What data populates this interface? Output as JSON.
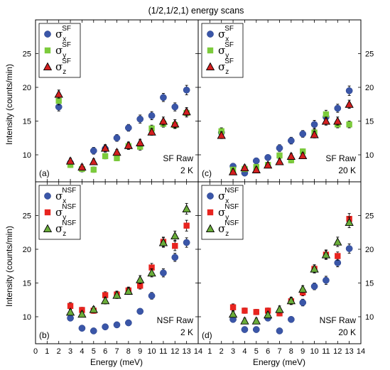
{
  "title": "(1/2,1/2,1) energy scans",
  "xlabel": "Energy (meV)",
  "ylabel": "Intensity (counts/min)",
  "colors": {
    "x": "#3a56a8",
    "y": "#7ccb3c",
    "y_nsf": "#e8241f",
    "z": "#d41f1f",
    "z_nsf": "#6aad3a"
  },
  "chart_data": [
    {
      "type": "scatter",
      "panel": "(a)",
      "label_line1": "SF Raw",
      "label_line2": "2 K",
      "x_ticks": [
        0,
        1,
        2,
        3,
        4,
        5,
        6,
        7,
        8,
        9,
        10,
        11,
        12,
        13,
        14
      ],
      "xlim": [
        0,
        14
      ],
      "ylim": [
        6,
        30
      ],
      "y_ticks": [
        10,
        15,
        20,
        25
      ],
      "series": [
        {
          "name": "σxSF",
          "sym": "σ",
          "sub": "x",
          "sup": "SF",
          "marker": "circle",
          "color": "#3a56a8",
          "x": [
            2,
            3,
            4,
            5,
            6,
            7,
            8,
            9,
            10,
            11,
            12,
            13
          ],
          "y": [
            17.1,
            8.8,
            7.9,
            10.6,
            10.9,
            12.5,
            14.0,
            15.3,
            15.8,
            18.5,
            17.1,
            19.6
          ],
          "err": [
            0.6,
            0.4,
            0.4,
            0.5,
            0.5,
            0.5,
            0.5,
            0.6,
            0.6,
            0.6,
            0.6,
            0.7
          ]
        },
        {
          "name": "σySF",
          "sym": "σ",
          "sub": "y",
          "sup": "SF",
          "marker": "square",
          "color": "#7ccb3c",
          "x": [
            2,
            3,
            4,
            5,
            6,
            7,
            8,
            9,
            10,
            11,
            12,
            13
          ],
          "y": [
            18.0,
            8.5,
            7.9,
            7.8,
            9.8,
            9.5,
            11.3,
            11.2,
            13.9,
            14.6,
            14.4,
            16.2
          ],
          "err": [
            0.6,
            0.4,
            0.4,
            0.4,
            0.4,
            0.4,
            0.5,
            0.5,
            0.5,
            0.5,
            0.5,
            0.6
          ]
        },
        {
          "name": "σzSF",
          "sym": "σ",
          "sub": "z",
          "sup": "SF",
          "marker": "triangle",
          "color": "#d41f1f",
          "x": [
            2,
            3,
            4,
            5,
            6,
            7,
            8,
            9,
            10,
            11,
            12,
            13
          ],
          "y": [
            19.0,
            9.1,
            8.2,
            9.0,
            11.0,
            10.4,
            11.4,
            11.8,
            13.4,
            15.0,
            14.6,
            16.4
          ],
          "err": [
            0.6,
            0.4,
            0.4,
            0.4,
            0.5,
            0.4,
            0.5,
            0.5,
            0.5,
            0.6,
            0.6,
            0.6
          ]
        }
      ]
    },
    {
      "type": "scatter",
      "panel": "(c)",
      "label_line1": "SF Raw",
      "label_line2": "20 K",
      "x_ticks": [
        0,
        1,
        2,
        3,
        4,
        5,
        6,
        7,
        8,
        9,
        10,
        11,
        12,
        13,
        14
      ],
      "xlim": [
        0,
        14
      ],
      "ylim": [
        6,
        30
      ],
      "y_ticks": [
        10,
        15,
        20,
        25
      ],
      "series": [
        {
          "name": "σxSF",
          "sym": "σ",
          "sub": "x",
          "sup": "SF",
          "marker": "circle",
          "color": "#3a56a8",
          "x": [
            2,
            3,
            4,
            5,
            6,
            7,
            8,
            9,
            10,
            11,
            12,
            13
          ],
          "y": [
            13.3,
            8.3,
            7.3,
            9.1,
            9.6,
            11.0,
            12.1,
            13.1,
            14.5,
            15.6,
            16.9,
            19.5
          ],
          "err": [
            0.5,
            0.4,
            0.4,
            0.4,
            0.4,
            0.5,
            0.5,
            0.5,
            0.6,
            0.6,
            0.6,
            0.7
          ]
        },
        {
          "name": "σySF",
          "sym": "σ",
          "sub": "y",
          "sup": "SF",
          "marker": "square",
          "color": "#7ccb3c",
          "x": [
            2,
            3,
            4,
            5,
            6,
            7,
            8,
            9,
            10,
            11,
            12,
            13
          ],
          "y": [
            13.5,
            7.8,
            7.9,
            8.2,
            8.5,
            9.9,
            9.2,
            10.5,
            13.3,
            16.0,
            14.5,
            14.5
          ],
          "err": [
            0.5,
            0.4,
            0.4,
            0.4,
            0.4,
            0.4,
            0.4,
            0.4,
            0.5,
            0.6,
            0.5,
            0.5
          ]
        },
        {
          "name": "σzSF",
          "sym": "σ",
          "sub": "z",
          "sup": "SF",
          "marker": "triangle",
          "color": "#d41f1f",
          "x": [
            2,
            3,
            4,
            5,
            6,
            7,
            8,
            9,
            10,
            11,
            12,
            13
          ],
          "y": [
            12.9,
            7.5,
            8.1,
            7.8,
            8.5,
            9.0,
            9.8,
            9.9,
            13.0,
            15.0,
            15.0,
            17.5
          ],
          "err": [
            0.5,
            0.4,
            0.4,
            0.4,
            0.4,
            0.4,
            0.4,
            0.4,
            0.5,
            0.6,
            0.6,
            0.6
          ]
        }
      ]
    },
    {
      "type": "scatter",
      "panel": "(b)",
      "label_line1": "NSF Raw",
      "label_line2": "2 K",
      "x_ticks": [
        0,
        1,
        2,
        3,
        4,
        5,
        6,
        7,
        8,
        9,
        10,
        11,
        12,
        13,
        14
      ],
      "x_tick_labels": [
        "0",
        "1",
        "2",
        "3",
        "4",
        "5",
        "6",
        "7",
        "8",
        "9",
        "10",
        "11",
        "12",
        "13",
        "14"
      ],
      "xlim": [
        0,
        14
      ],
      "ylim": [
        6,
        30
      ],
      "y_ticks": [
        10,
        15,
        20,
        25
      ],
      "series": [
        {
          "name": "σxNSF",
          "sym": "σ",
          "sub": "x",
          "sup": "NSF",
          "marker": "circle",
          "color": "#3a56a8",
          "x": [
            3,
            4,
            5,
            6,
            7,
            8,
            9,
            10,
            11,
            12,
            13
          ],
          "y": [
            9.8,
            8.3,
            7.9,
            8.5,
            8.8,
            9.1,
            10.8,
            13.1,
            16.5,
            18.8,
            21.0
          ],
          "err": [
            0.4,
            0.4,
            0.4,
            0.4,
            0.4,
            0.4,
            0.4,
            0.5,
            0.6,
            0.6,
            0.7
          ]
        },
        {
          "name": "σyNSF",
          "sym": "σ",
          "sub": "y",
          "sup": "NSF",
          "marker": "square",
          "color": "#e8241f",
          "x": [
            3,
            4,
            5,
            6,
            7,
            8,
            9,
            10,
            11,
            12,
            13
          ],
          "y": [
            11.6,
            11.0,
            10.9,
            13.2,
            13.3,
            13.9,
            14.6,
            17.3,
            21.1,
            20.5,
            23.5
          ],
          "err": [
            0.5,
            0.4,
            0.4,
            0.5,
            0.5,
            0.5,
            0.5,
            0.6,
            0.7,
            0.7,
            0.8
          ]
        },
        {
          "name": "σzNSF",
          "sym": "σ",
          "sub": "z",
          "sup": "NSF",
          "marker": "triangle",
          "color": "#6aad3a",
          "x": [
            3,
            4,
            5,
            6,
            7,
            8,
            9,
            10,
            11,
            12,
            13
          ],
          "y": [
            10.7,
            10.4,
            11.1,
            12.4,
            13.2,
            13.8,
            15.5,
            16.5,
            21.0,
            22.0,
            26.0
          ],
          "err": [
            0.4,
            0.4,
            0.4,
            0.5,
            0.5,
            0.5,
            0.6,
            0.6,
            0.7,
            0.7,
            0.8
          ]
        }
      ]
    },
    {
      "type": "scatter",
      "panel": "(d)",
      "label_line1": "NSF Raw",
      "label_line2": "20 K",
      "x_ticks": [
        0,
        1,
        2,
        3,
        4,
        5,
        6,
        7,
        8,
        9,
        10,
        11,
        12,
        13,
        14
      ],
      "x_tick_labels": [
        "",
        "1",
        "2",
        "3",
        "4",
        "5",
        "6",
        "7",
        "8",
        "9",
        "10",
        "11",
        "12",
        "13",
        "14"
      ],
      "xlim": [
        0,
        14
      ],
      "ylim": [
        6,
        30
      ],
      "y_ticks": [
        10,
        15,
        20,
        25
      ],
      "series": [
        {
          "name": "σxNSF",
          "sym": "σ",
          "sub": "x",
          "sup": "NSF",
          "marker": "circle",
          "color": "#3a56a8",
          "x": [
            3,
            4,
            5,
            6,
            7,
            8,
            9,
            10,
            11,
            12,
            13
          ],
          "y": [
            9.6,
            8.1,
            8.1,
            9.8,
            7.9,
            9.6,
            12.1,
            14.5,
            15.4,
            18.0,
            20.1
          ],
          "err": [
            0.4,
            0.4,
            0.4,
            0.4,
            0.4,
            0.4,
            0.5,
            0.5,
            0.6,
            0.6,
            0.7
          ]
        },
        {
          "name": "σyNSF",
          "sym": "σ",
          "sub": "y",
          "sup": "NSF",
          "marker": "square",
          "color": "#e8241f",
          "x": [
            3,
            4,
            5,
            6,
            7,
            8,
            9,
            10,
            11,
            12,
            13
          ],
          "y": [
            11.4,
            10.9,
            10.7,
            10.9,
            10.5,
            12.3,
            13.6,
            17.1,
            19.2,
            19.0,
            24.5
          ],
          "err": [
            0.5,
            0.4,
            0.4,
            0.4,
            0.4,
            0.5,
            0.5,
            0.6,
            0.6,
            0.6,
            0.8
          ]
        },
        {
          "name": "σzNSF",
          "sym": "σ",
          "sub": "z",
          "sup": "NSF",
          "marker": "triangle",
          "color": "#6aad3a",
          "x": [
            3,
            4,
            5,
            6,
            7,
            8,
            9,
            10,
            11,
            12,
            13
          ],
          "y": [
            10.4,
            9.4,
            9.4,
            10.3,
            11.1,
            12.4,
            14.1,
            17.1,
            19.2,
            21.1,
            24.0
          ],
          "err": [
            0.4,
            0.4,
            0.4,
            0.4,
            0.5,
            0.5,
            0.5,
            0.6,
            0.7,
            0.7,
            0.8
          ]
        }
      ]
    }
  ]
}
